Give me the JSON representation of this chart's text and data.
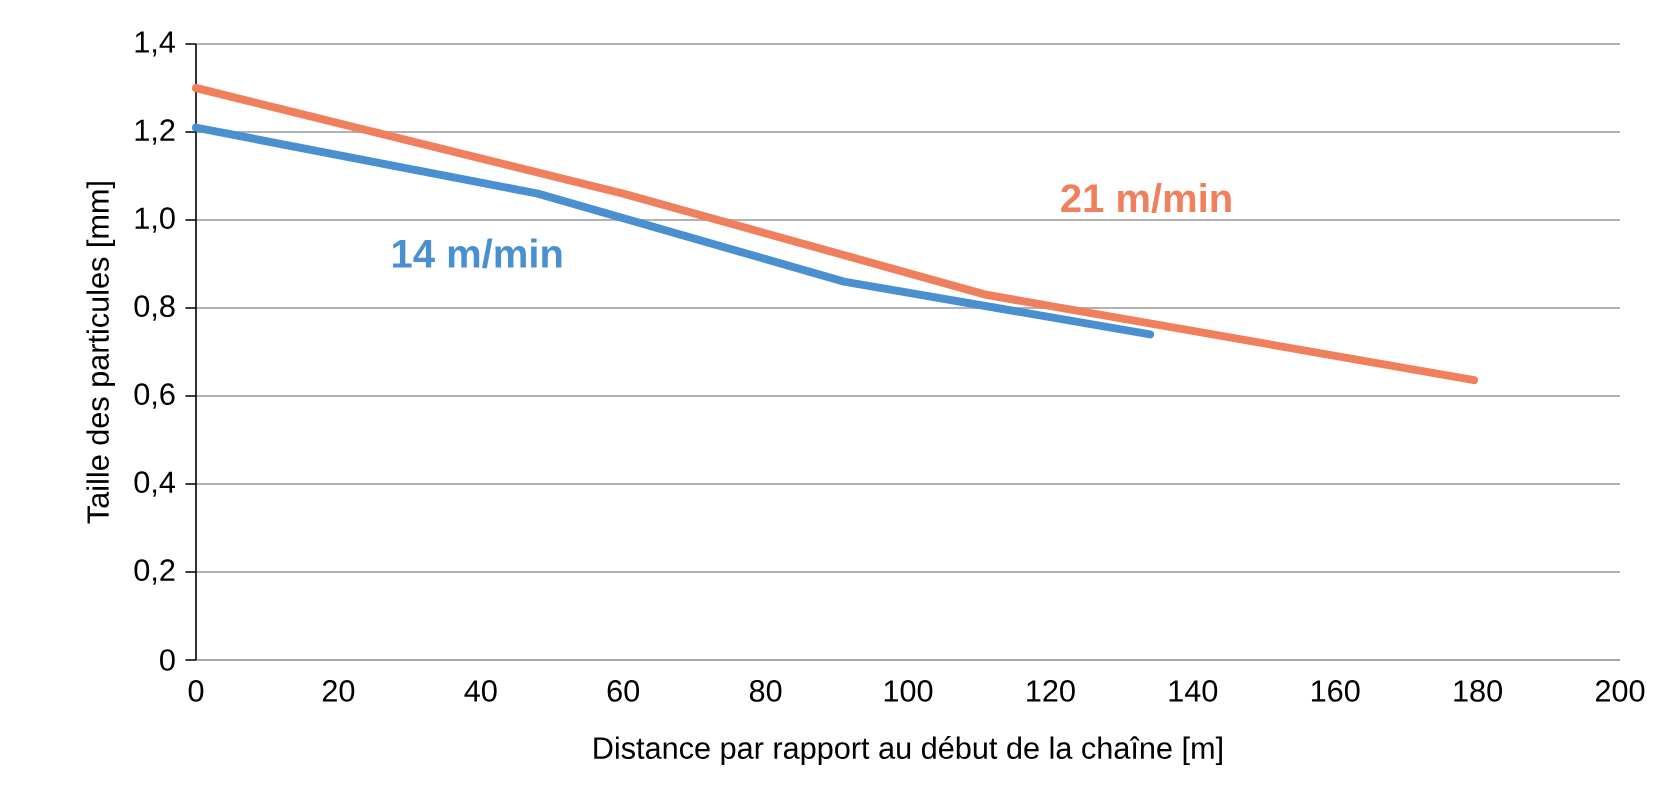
{
  "chart_data": {
    "type": "line",
    "xlabel": "Distance par rapport au début de la chaîne [m]",
    "ylabel": "Taille des particules [mm]",
    "series": [
      {
        "name": "14 m/min",
        "color": "#4a8fcf",
        "x": [
          0,
          48,
          91,
          134
        ],
        "values": [
          1.21,
          1.06,
          0.86,
          0.74
        ]
      },
      {
        "name": "21 m/min",
        "color": "#f07f5e",
        "x": [
          0,
          60,
          111,
          179.5
        ],
        "values": [
          1.3,
          1.06,
          0.83,
          0.636
        ]
      }
    ],
    "xlim": [
      0,
      200
    ],
    "xticks": [
      0,
      20,
      40,
      60,
      80,
      100,
      120,
      140,
      160,
      180,
      200
    ],
    "ylim": [
      0,
      1.4
    ],
    "yticks": [
      0,
      {
        "value": 0.2,
        "label": "0,2"
      },
      {
        "value": 0.4,
        "label": "0,4"
      },
      {
        "value": 0.6,
        "label": "0,6"
      },
      {
        "value": 0.8,
        "label": "0,8"
      },
      {
        "value": 1.0,
        "label": "1,0"
      },
      {
        "value": 1.2,
        "label": "1,2"
      },
      {
        "value": 1.4,
        "label": "1,4"
      }
    ],
    "grid": "y",
    "marker": "none",
    "line_style": "solid"
  }
}
